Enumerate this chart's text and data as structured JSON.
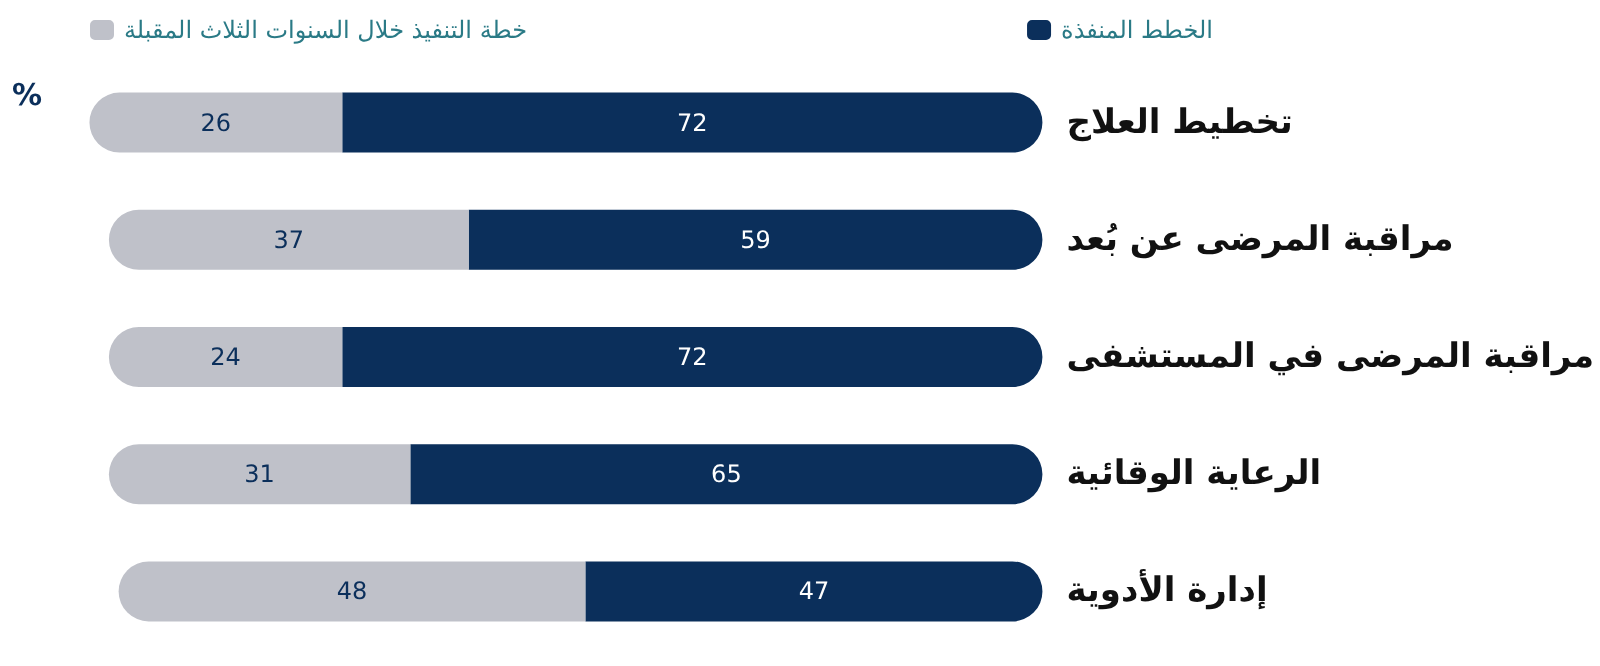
{
  "chart_data": {
    "type": "bar",
    "orientation": "horizontal",
    "stacked": true,
    "categories": [
      "تخطيط العلاج",
      "مراقبة المرضى عن بُعد",
      "مراقبة المرضى في المستشفى",
      "الرعاية الوقائية",
      "إدارة الأدوية"
    ],
    "series": [
      {
        "name": "الخطط المنفذة",
        "color": "#0b2f5b",
        "values": [
          72,
          59,
          72,
          65,
          47
        ]
      },
      {
        "name": "خطة التنفيذ خلال السنوات الثلاث المقبلة",
        "color": "#bfc1c9",
        "values": [
          26,
          37,
          24,
          31,
          48
        ]
      }
    ],
    "tick_labels": "y",
    "data_labels": true,
    "legend": "top",
    "grid": false,
    "annotations": [
      "%"
    ]
  }
}
